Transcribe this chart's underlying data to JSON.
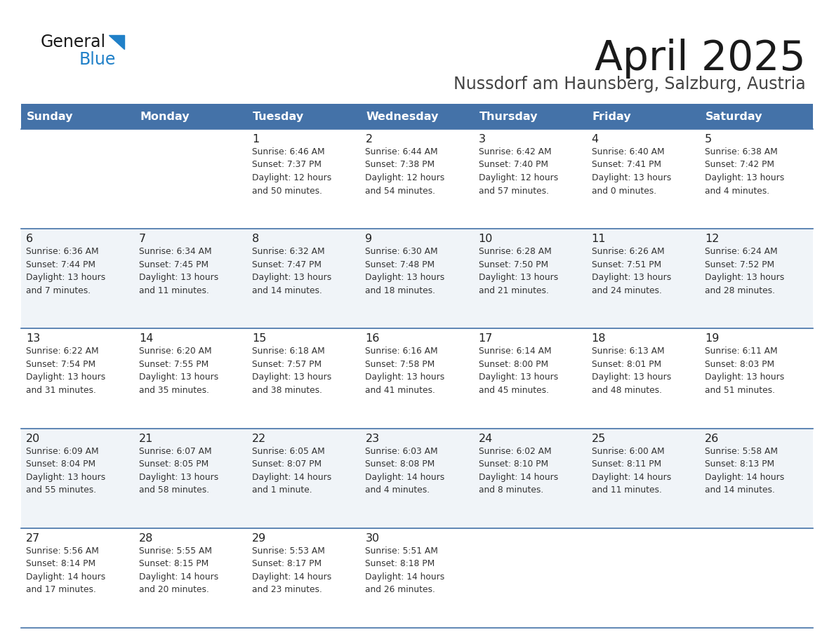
{
  "title": "April 2025",
  "subtitle": "Nussdorf am Haunsberg, Salzburg, Austria",
  "days_of_week": [
    "Sunday",
    "Monday",
    "Tuesday",
    "Wednesday",
    "Thursday",
    "Friday",
    "Saturday"
  ],
  "header_bg": "#4472A8",
  "header_text_color": "#FFFFFF",
  "row_bg_light": "#F0F4F8",
  "row_bg_white": "#FFFFFF",
  "cell_border_color": "#4472A8",
  "day_number_color": "#222222",
  "cell_text_color": "#333333",
  "calendar": [
    [
      {
        "day": null,
        "text": ""
      },
      {
        "day": null,
        "text": ""
      },
      {
        "day": 1,
        "text": "Sunrise: 6:46 AM\nSunset: 7:37 PM\nDaylight: 12 hours\nand 50 minutes."
      },
      {
        "day": 2,
        "text": "Sunrise: 6:44 AM\nSunset: 7:38 PM\nDaylight: 12 hours\nand 54 minutes."
      },
      {
        "day": 3,
        "text": "Sunrise: 6:42 AM\nSunset: 7:40 PM\nDaylight: 12 hours\nand 57 minutes."
      },
      {
        "day": 4,
        "text": "Sunrise: 6:40 AM\nSunset: 7:41 PM\nDaylight: 13 hours\nand 0 minutes."
      },
      {
        "day": 5,
        "text": "Sunrise: 6:38 AM\nSunset: 7:42 PM\nDaylight: 13 hours\nand 4 minutes."
      }
    ],
    [
      {
        "day": 6,
        "text": "Sunrise: 6:36 AM\nSunset: 7:44 PM\nDaylight: 13 hours\nand 7 minutes."
      },
      {
        "day": 7,
        "text": "Sunrise: 6:34 AM\nSunset: 7:45 PM\nDaylight: 13 hours\nand 11 minutes."
      },
      {
        "day": 8,
        "text": "Sunrise: 6:32 AM\nSunset: 7:47 PM\nDaylight: 13 hours\nand 14 minutes."
      },
      {
        "day": 9,
        "text": "Sunrise: 6:30 AM\nSunset: 7:48 PM\nDaylight: 13 hours\nand 18 minutes."
      },
      {
        "day": 10,
        "text": "Sunrise: 6:28 AM\nSunset: 7:50 PM\nDaylight: 13 hours\nand 21 minutes."
      },
      {
        "day": 11,
        "text": "Sunrise: 6:26 AM\nSunset: 7:51 PM\nDaylight: 13 hours\nand 24 minutes."
      },
      {
        "day": 12,
        "text": "Sunrise: 6:24 AM\nSunset: 7:52 PM\nDaylight: 13 hours\nand 28 minutes."
      }
    ],
    [
      {
        "day": 13,
        "text": "Sunrise: 6:22 AM\nSunset: 7:54 PM\nDaylight: 13 hours\nand 31 minutes."
      },
      {
        "day": 14,
        "text": "Sunrise: 6:20 AM\nSunset: 7:55 PM\nDaylight: 13 hours\nand 35 minutes."
      },
      {
        "day": 15,
        "text": "Sunrise: 6:18 AM\nSunset: 7:57 PM\nDaylight: 13 hours\nand 38 minutes."
      },
      {
        "day": 16,
        "text": "Sunrise: 6:16 AM\nSunset: 7:58 PM\nDaylight: 13 hours\nand 41 minutes."
      },
      {
        "day": 17,
        "text": "Sunrise: 6:14 AM\nSunset: 8:00 PM\nDaylight: 13 hours\nand 45 minutes."
      },
      {
        "day": 18,
        "text": "Sunrise: 6:13 AM\nSunset: 8:01 PM\nDaylight: 13 hours\nand 48 minutes."
      },
      {
        "day": 19,
        "text": "Sunrise: 6:11 AM\nSunset: 8:03 PM\nDaylight: 13 hours\nand 51 minutes."
      }
    ],
    [
      {
        "day": 20,
        "text": "Sunrise: 6:09 AM\nSunset: 8:04 PM\nDaylight: 13 hours\nand 55 minutes."
      },
      {
        "day": 21,
        "text": "Sunrise: 6:07 AM\nSunset: 8:05 PM\nDaylight: 13 hours\nand 58 minutes."
      },
      {
        "day": 22,
        "text": "Sunrise: 6:05 AM\nSunset: 8:07 PM\nDaylight: 14 hours\nand 1 minute."
      },
      {
        "day": 23,
        "text": "Sunrise: 6:03 AM\nSunset: 8:08 PM\nDaylight: 14 hours\nand 4 minutes."
      },
      {
        "day": 24,
        "text": "Sunrise: 6:02 AM\nSunset: 8:10 PM\nDaylight: 14 hours\nand 8 minutes."
      },
      {
        "day": 25,
        "text": "Sunrise: 6:00 AM\nSunset: 8:11 PM\nDaylight: 14 hours\nand 11 minutes."
      },
      {
        "day": 26,
        "text": "Sunrise: 5:58 AM\nSunset: 8:13 PM\nDaylight: 14 hours\nand 14 minutes."
      }
    ],
    [
      {
        "day": 27,
        "text": "Sunrise: 5:56 AM\nSunset: 8:14 PM\nDaylight: 14 hours\nand 17 minutes."
      },
      {
        "day": 28,
        "text": "Sunrise: 5:55 AM\nSunset: 8:15 PM\nDaylight: 14 hours\nand 20 minutes."
      },
      {
        "day": 29,
        "text": "Sunrise: 5:53 AM\nSunset: 8:17 PM\nDaylight: 14 hours\nand 23 minutes."
      },
      {
        "day": 30,
        "text": "Sunrise: 5:51 AM\nSunset: 8:18 PM\nDaylight: 14 hours\nand 26 minutes."
      },
      {
        "day": null,
        "text": ""
      },
      {
        "day": null,
        "text": ""
      },
      {
        "day": null,
        "text": ""
      }
    ]
  ],
  "logo_general_color": "#1a1a1a",
  "logo_blue_color": "#2080C8",
  "logo_triangle_color": "#2080C8"
}
